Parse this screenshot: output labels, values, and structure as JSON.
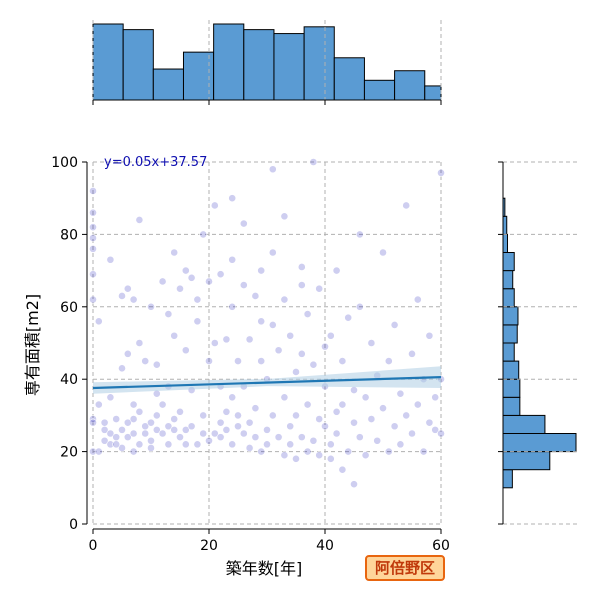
{
  "chart_data": {
    "type": "scatter",
    "title": "",
    "xlabel": "築年数[年]",
    "ylabel": "専有面積[m2]",
    "xlim": [
      0,
      60
    ],
    "ylim": [
      0,
      100
    ],
    "xticks": [
      0,
      20,
      40,
      60
    ],
    "yticks": [
      0,
      20,
      40,
      60,
      80,
      100
    ],
    "grid": true,
    "regression": {
      "label": "y=0.05x+37.57",
      "slope": 0.05,
      "intercept": 37.57,
      "line_color": "#1f77b4",
      "band_color": "#aecde4",
      "label_color": "#1010b0"
    },
    "point_color": "#2222bb",
    "bar_color": "#5a9bd3",
    "marginal_x": {
      "bin_edges": [
        0,
        5.2,
        10.4,
        15.6,
        20.8,
        26,
        31.2,
        36.4,
        41.6,
        46.8,
        52,
        57.2,
        60
      ],
      "counts": [
        13.5,
        12.5,
        5.5,
        8.5,
        13.5,
        12.5,
        11.8,
        13.0,
        7.5,
        3.5,
        5.2,
        2.5
      ]
    },
    "marginal_y": {
      "bin_edges": [
        10,
        15,
        20,
        25,
        30,
        35,
        40,
        45,
        50,
        55,
        60,
        65,
        70,
        75,
        80,
        85,
        90
      ],
      "counts": [
        2.5,
        12.5,
        19.5,
        11.2,
        4.5,
        4.5,
        4.2,
        3.0,
        3.8,
        4.0,
        3.0,
        2.6,
        3.0,
        1.2,
        1.0,
        0.5
      ]
    },
    "points": [
      [
        0,
        92
      ],
      [
        0,
        86
      ],
      [
        0,
        82
      ],
      [
        0,
        79
      ],
      [
        0,
        76
      ],
      [
        0,
        69
      ],
      [
        0,
        29
      ],
      [
        0,
        28
      ],
      [
        0,
        20
      ],
      [
        0,
        62
      ],
      [
        1,
        56
      ],
      [
        1,
        33
      ],
      [
        1,
        20
      ],
      [
        2,
        26
      ],
      [
        2,
        23
      ],
      [
        3,
        25
      ],
      [
        3,
        22
      ],
      [
        3,
        35
      ],
      [
        3,
        73
      ],
      [
        4,
        29
      ],
      [
        4,
        24
      ],
      [
        5,
        26
      ],
      [
        5,
        21
      ],
      [
        5,
        43
      ],
      [
        5,
        63
      ],
      [
        6,
        28
      ],
      [
        6,
        24
      ],
      [
        6,
        65
      ],
      [
        6,
        47
      ],
      [
        7,
        33
      ],
      [
        7,
        29
      ],
      [
        7,
        25
      ],
      [
        7,
        62
      ],
      [
        8,
        84
      ],
      [
        8,
        50
      ],
      [
        8,
        31
      ],
      [
        8,
        22
      ],
      [
        9,
        27
      ],
      [
        9,
        25
      ],
      [
        9,
        45
      ],
      [
        10,
        28
      ],
      [
        10,
        23
      ],
      [
        10,
        60
      ],
      [
        11,
        30
      ],
      [
        11,
        26
      ],
      [
        11,
        44
      ],
      [
        11,
        36
      ],
      [
        12,
        25
      ],
      [
        12,
        33
      ],
      [
        12,
        67
      ],
      [
        13,
        22
      ],
      [
        13,
        27
      ],
      [
        13,
        58
      ],
      [
        13,
        38
      ],
      [
        14,
        29
      ],
      [
        14,
        75
      ],
      [
        14,
        52
      ],
      [
        15,
        24
      ],
      [
        15,
        31
      ],
      [
        15,
        65
      ],
      [
        16,
        26
      ],
      [
        16,
        48
      ],
      [
        16,
        70
      ],
      [
        17,
        27
      ],
      [
        17,
        37
      ],
      [
        18,
        22
      ],
      [
        18,
        56
      ],
      [
        18,
        62
      ],
      [
        19,
        25
      ],
      [
        19,
        30
      ],
      [
        19,
        80
      ],
      [
        20,
        23
      ],
      [
        20,
        45
      ],
      [
        20,
        67
      ],
      [
        21,
        88
      ],
      [
        21,
        25
      ],
      [
        21,
        50
      ],
      [
        22,
        24
      ],
      [
        22,
        28
      ],
      [
        22,
        69
      ],
      [
        22,
        38
      ],
      [
        23,
        26
      ],
      [
        23,
        51
      ],
      [
        23,
        31
      ],
      [
        24,
        22
      ],
      [
        24,
        73
      ],
      [
        24,
        60
      ],
      [
        24,
        35
      ],
      [
        25,
        30
      ],
      [
        25,
        27
      ],
      [
        25,
        45
      ],
      [
        26,
        83
      ],
      [
        26,
        25
      ],
      [
        26,
        66
      ],
      [
        26,
        38
      ],
      [
        27,
        21
      ],
      [
        27,
        51
      ],
      [
        27,
        28
      ],
      [
        28,
        24
      ],
      [
        28,
        63
      ],
      [
        28,
        32
      ],
      [
        29,
        20
      ],
      [
        29,
        45
      ],
      [
        29,
        70
      ],
      [
        30,
        26
      ],
      [
        30,
        40
      ],
      [
        30,
        22
      ],
      [
        31,
        55
      ],
      [
        31,
        30
      ],
      [
        31,
        75
      ],
      [
        32,
        24
      ],
      [
        32,
        48
      ],
      [
        33,
        85
      ],
      [
        33,
        19
      ],
      [
        33,
        35
      ],
      [
        33,
        62
      ],
      [
        34,
        27
      ],
      [
        34,
        22
      ],
      [
        34,
        52
      ],
      [
        35,
        42
      ],
      [
        35,
        18
      ],
      [
        35,
        30
      ],
      [
        36,
        66
      ],
      [
        36,
        24
      ],
      [
        36,
        47
      ],
      [
        37,
        20
      ],
      [
        37,
        33
      ],
      [
        37,
        58
      ],
      [
        38,
        23
      ],
      [
        38,
        44
      ],
      [
        38,
        100
      ],
      [
        39,
        19
      ],
      [
        39,
        29
      ],
      [
        39,
        65
      ],
      [
        40,
        27
      ],
      [
        40,
        49
      ],
      [
        40,
        38
      ],
      [
        41,
        18
      ],
      [
        41,
        52
      ],
      [
        41,
        22
      ],
      [
        42,
        31
      ],
      [
        42,
        70
      ],
      [
        42,
        25
      ],
      [
        43,
        33
      ],
      [
        43,
        15
      ],
      [
        43,
        45
      ],
      [
        44,
        57
      ],
      [
        44,
        20
      ],
      [
        45,
        11
      ],
      [
        45,
        28
      ],
      [
        45,
        37
      ],
      [
        46,
        80
      ],
      [
        46,
        24
      ],
      [
        46,
        60
      ],
      [
        47,
        35
      ],
      [
        47,
        19
      ],
      [
        48,
        50
      ],
      [
        48,
        29
      ],
      [
        49,
        41
      ],
      [
        49,
        23
      ],
      [
        50,
        75
      ],
      [
        50,
        32
      ],
      [
        51,
        20
      ],
      [
        51,
        45
      ],
      [
        52,
        27
      ],
      [
        52,
        55
      ],
      [
        53,
        36
      ],
      [
        53,
        22
      ],
      [
        54,
        88
      ],
      [
        54,
        30
      ],
      [
        55,
        25
      ],
      [
        55,
        47
      ],
      [
        56,
        33
      ],
      [
        56,
        62
      ],
      [
        57,
        40
      ],
      [
        57,
        20
      ],
      [
        58,
        28
      ],
      [
        58,
        52
      ],
      [
        59,
        26
      ],
      [
        59,
        35
      ],
      [
        60,
        97
      ],
      [
        60,
        40
      ],
      [
        60,
        25
      ],
      [
        31,
        98
      ],
      [
        24,
        90
      ],
      [
        36,
        71
      ],
      [
        17,
        68
      ],
      [
        29,
        56
      ],
      [
        2,
        28
      ],
      [
        4,
        22
      ],
      [
        7,
        20
      ],
      [
        10,
        21
      ],
      [
        14,
        26
      ],
      [
        16,
        22
      ]
    ]
  },
  "badge": {
    "label": "阿倍野区"
  }
}
